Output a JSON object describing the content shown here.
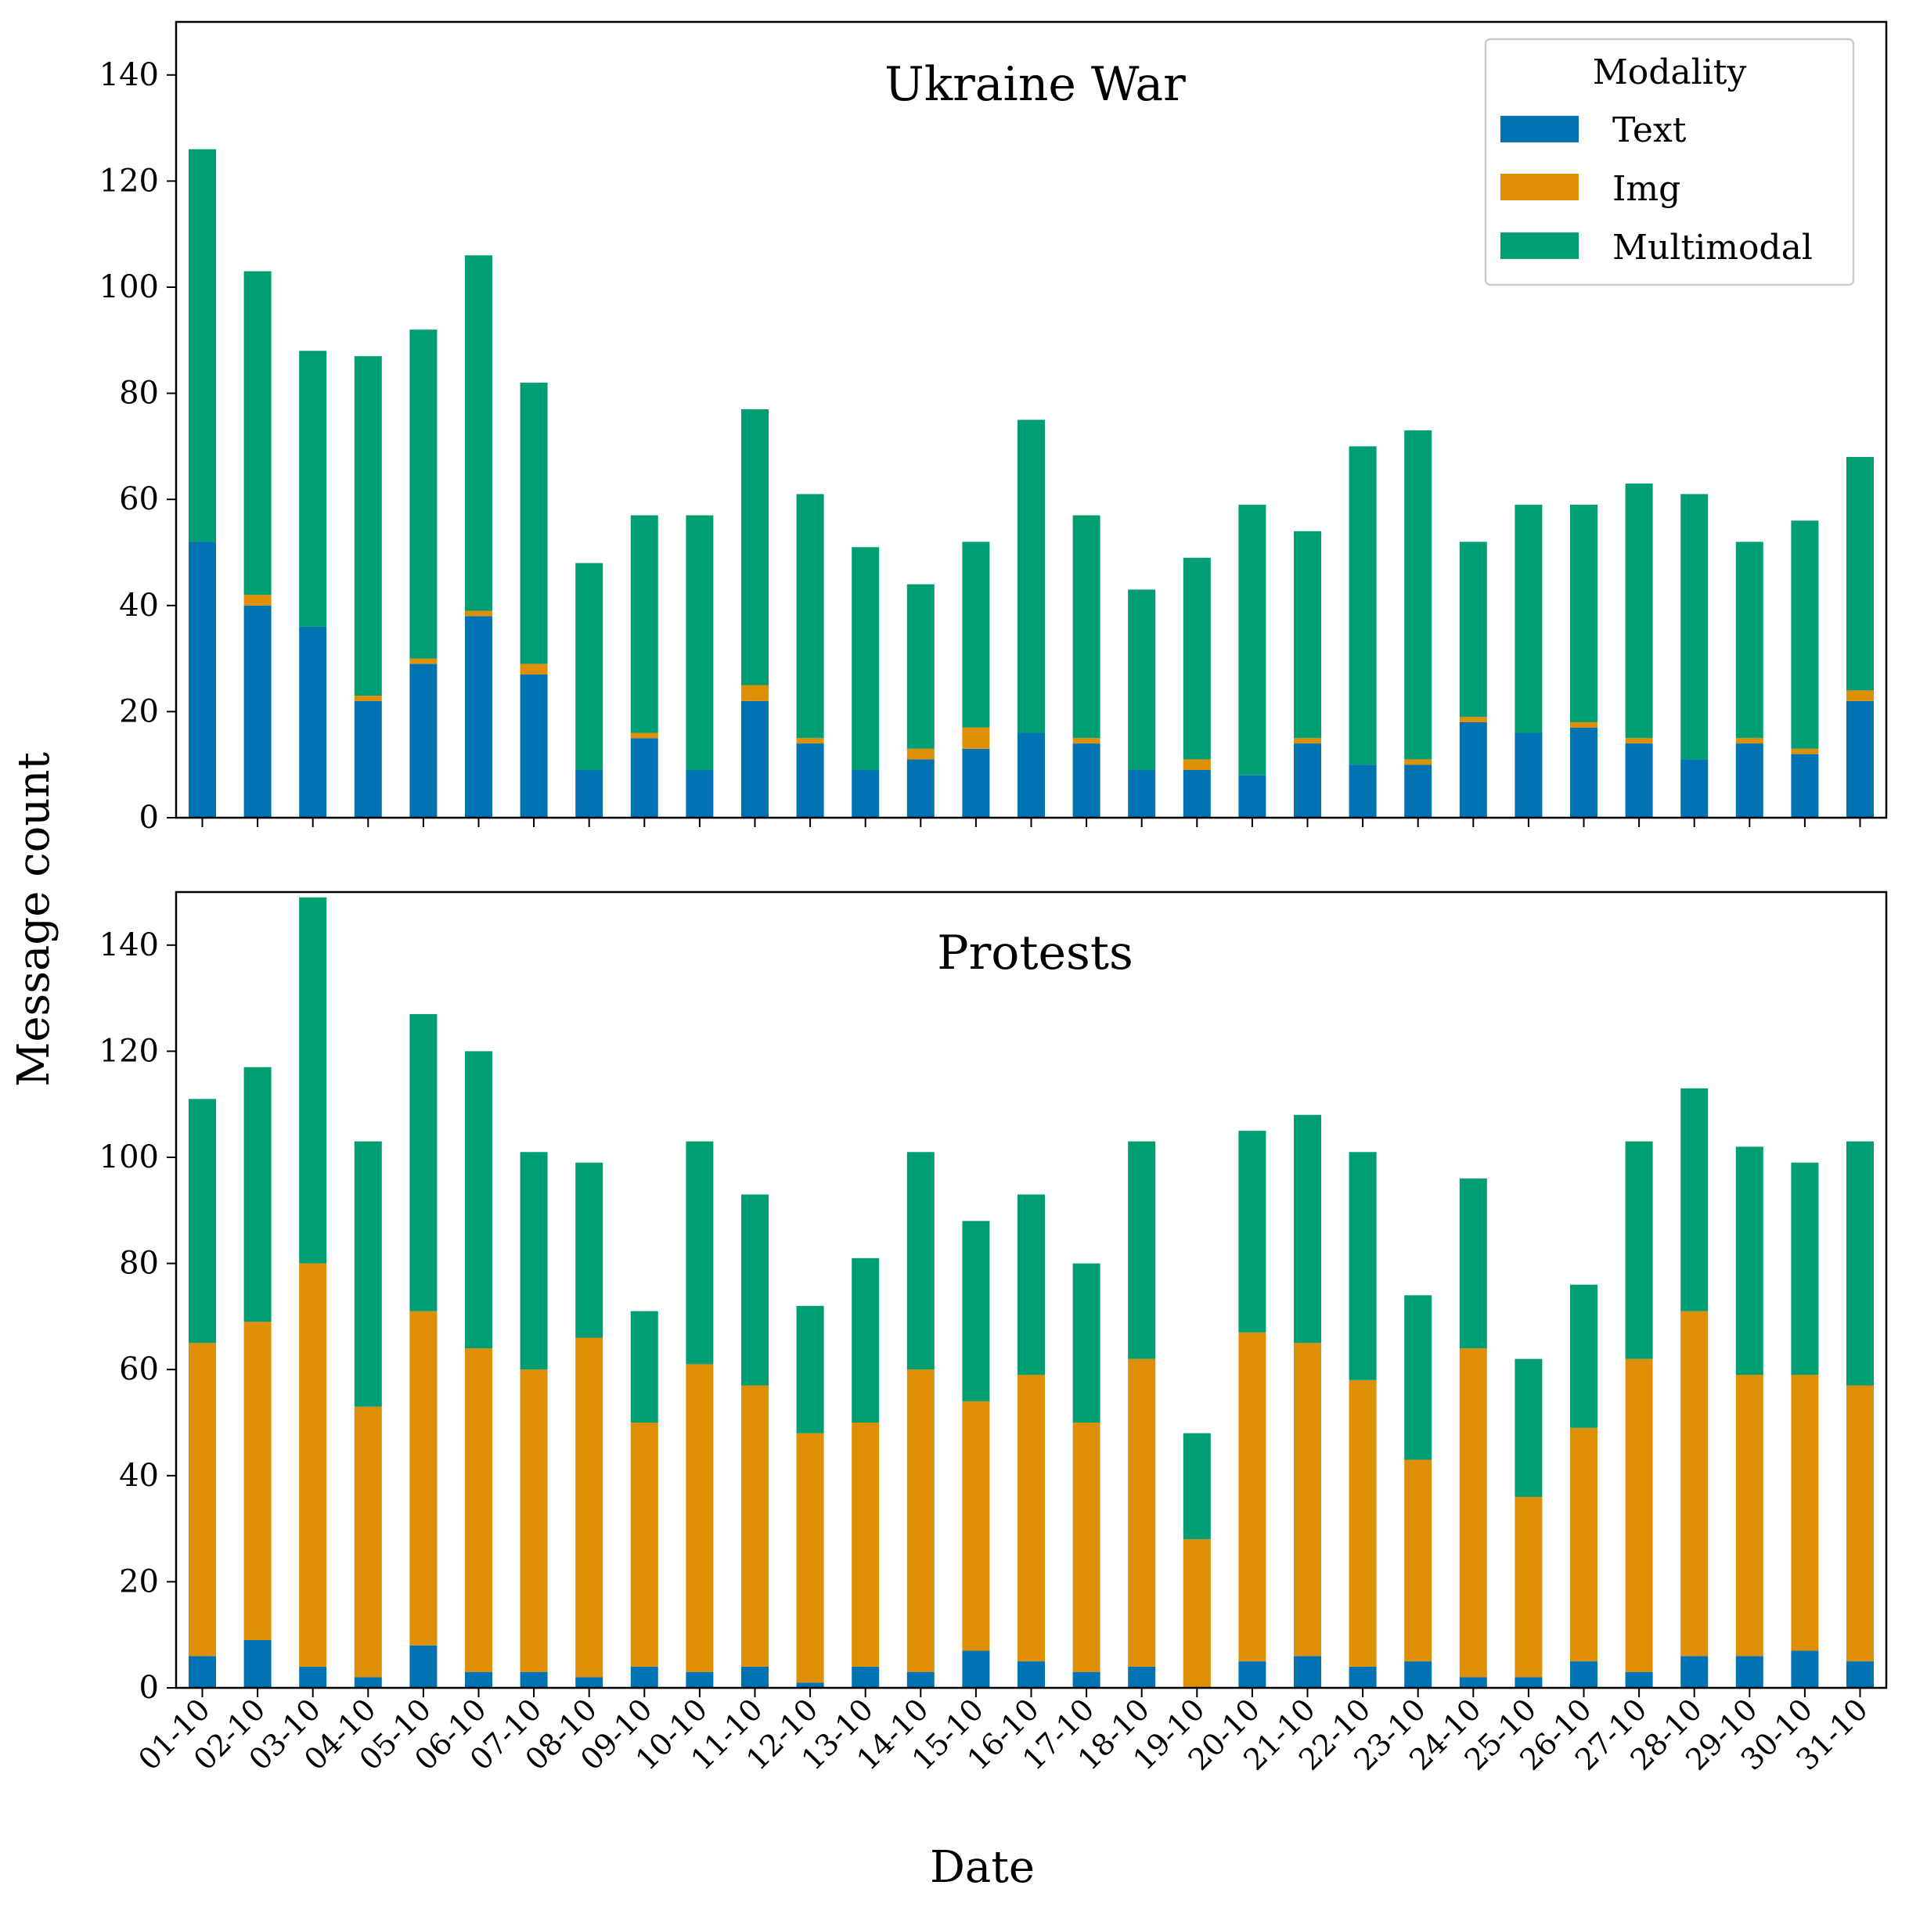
{
  "figure": {
    "ylabel": "Message count",
    "xlabel": "Date"
  },
  "legend": {
    "title": "Modality",
    "placement": "top-right"
  },
  "chart_data": [
    {
      "type": "bar",
      "stacked": true,
      "title": "Ukraine War",
      "ylim": [
        0,
        150
      ],
      "yticks": [
        0,
        20,
        40,
        60,
        80,
        100,
        120,
        140
      ],
      "categories": [
        "01-10",
        "02-10",
        "03-10",
        "04-10",
        "05-10",
        "06-10",
        "07-10",
        "08-10",
        "09-10",
        "10-10",
        "11-10",
        "12-10",
        "13-10",
        "14-10",
        "15-10",
        "16-10",
        "17-10",
        "18-10",
        "19-10",
        "20-10",
        "21-10",
        "22-10",
        "23-10",
        "24-10",
        "25-10",
        "26-10",
        "27-10",
        "28-10",
        "29-10",
        "30-10",
        "31-10"
      ],
      "series": [
        {
          "name": "Text",
          "color": "#0173b2",
          "values": [
            52,
            40,
            36,
            22,
            29,
            38,
            27,
            9,
            15,
            9,
            22,
            14,
            9,
            11,
            13,
            16,
            14,
            9,
            9,
            8,
            14,
            10,
            10,
            18,
            16,
            17,
            14,
            11,
            14,
            12,
            22
          ]
        },
        {
          "name": "Img",
          "color": "#de8f05",
          "values": [
            0,
            2,
            0,
            1,
            1,
            1,
            2,
            0,
            1,
            0,
            3,
            1,
            0,
            2,
            4,
            0,
            1,
            0,
            2,
            0,
            1,
            0,
            1,
            1,
            0,
            1,
            1,
            0,
            1,
            1,
            2
          ]
        },
        {
          "name": "Multimodal",
          "color": "#029e73",
          "values": [
            74,
            61,
            52,
            64,
            62,
            67,
            53,
            39,
            41,
            48,
            52,
            46,
            42,
            31,
            35,
            59,
            42,
            34,
            38,
            51,
            39,
            60,
            62,
            33,
            43,
            41,
            48,
            50,
            37,
            43,
            44
          ]
        }
      ]
    },
    {
      "type": "bar",
      "stacked": true,
      "title": "Protests",
      "ylim": [
        0,
        150
      ],
      "yticks": [
        0,
        20,
        40,
        60,
        80,
        100,
        120,
        140
      ],
      "categories": [
        "01-10",
        "02-10",
        "03-10",
        "04-10",
        "05-10",
        "06-10",
        "07-10",
        "08-10",
        "09-10",
        "10-10",
        "11-10",
        "12-10",
        "13-10",
        "14-10",
        "15-10",
        "16-10",
        "17-10",
        "18-10",
        "19-10",
        "20-10",
        "21-10",
        "22-10",
        "23-10",
        "24-10",
        "25-10",
        "26-10",
        "27-10",
        "28-10",
        "29-10",
        "30-10",
        "31-10"
      ],
      "series": [
        {
          "name": "Text",
          "color": "#0173b2",
          "values": [
            6,
            9,
            4,
            2,
            8,
            3,
            3,
            2,
            4,
            3,
            4,
            1,
            4,
            3,
            7,
            5,
            3,
            4,
            0,
            5,
            6,
            4,
            5,
            2,
            2,
            5,
            3,
            6,
            6,
            7,
            5
          ]
        },
        {
          "name": "Img",
          "color": "#de8f05",
          "values": [
            59,
            60,
            76,
            51,
            63,
            61,
            57,
            64,
            46,
            58,
            53,
            47,
            46,
            57,
            47,
            54,
            47,
            58,
            28,
            62,
            59,
            54,
            38,
            62,
            34,
            44,
            59,
            65,
            53,
            52,
            52
          ]
        },
        {
          "name": "Multimodal",
          "color": "#029e73",
          "values": [
            46,
            48,
            69,
            50,
            56,
            56,
            41,
            33,
            21,
            42,
            36,
            24,
            31,
            41,
            34,
            34,
            30,
            41,
            20,
            38,
            43,
            43,
            31,
            32,
            26,
            27,
            41,
            42,
            43,
            40,
            46
          ]
        }
      ]
    }
  ]
}
